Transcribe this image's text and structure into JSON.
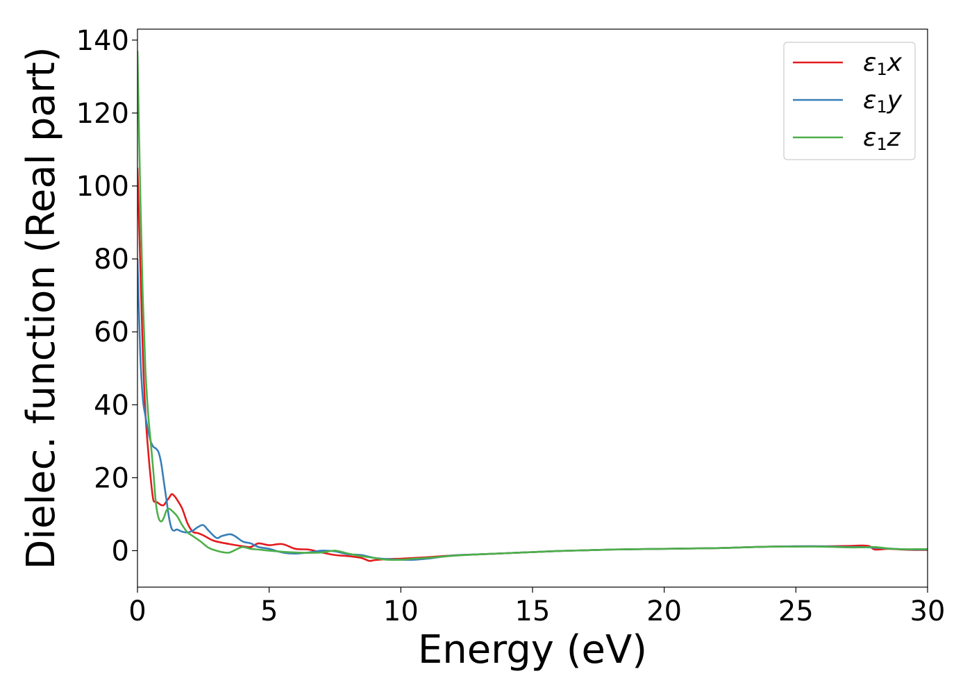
{
  "chart_data": {
    "type": "line",
    "title": "",
    "xlabel": "Energy (eV)",
    "ylabel": "Dielec. function (Real part)",
    "xlim": [
      0,
      30
    ],
    "ylim": [
      -10,
      143
    ],
    "xticks": [
      0,
      5,
      10,
      15,
      20,
      25,
      30
    ],
    "yticks": [
      0,
      20,
      40,
      60,
      80,
      100,
      120,
      140
    ],
    "grid": false,
    "legend_position": "top-right",
    "series": [
      {
        "name": "ε₁x",
        "legend_main": "ε",
        "legend_sub": "1",
        "legend_suffix": "x",
        "color": "#e41a1c",
        "x": [
          0,
          0.1,
          0.2,
          0.3,
          0.4,
          0.5,
          0.6,
          0.7,
          0.8,
          0.9,
          1.0,
          1.1,
          1.2,
          1.3,
          1.4,
          1.5,
          1.7,
          1.9,
          2.1,
          2.3,
          2.5,
          2.8,
          3.0,
          3.5,
          4.0,
          4.3,
          4.6,
          5.0,
          5.5,
          6.0,
          6.5,
          7.0,
          7.5,
          8.0,
          8.5,
          8.8,
          9.0,
          9.5,
          10.0,
          10.5,
          11.0,
          12.0,
          13.0,
          14.0,
          15.0,
          16.0,
          17.0,
          18.0,
          19.0,
          20.0,
          21.0,
          22.0,
          23.0,
          24.0,
          25.0,
          26.0,
          27.0,
          27.5,
          27.8,
          28.0,
          28.5,
          29.0,
          29.5,
          30.0
        ],
        "y": [
          105,
          80,
          55,
          38,
          28,
          20,
          14,
          13.5,
          13,
          12.5,
          12.5,
          13.5,
          14.5,
          15.5,
          15,
          14,
          11.5,
          7.5,
          5.2,
          4.8,
          4.2,
          3,
          2.5,
          1.8,
          1.2,
          1.0,
          2.0,
          1.5,
          1.8,
          0.5,
          0.3,
          -0.5,
          -1.2,
          -1.5,
          -2.0,
          -2.8,
          -2.6,
          -2.3,
          -2.2,
          -2.0,
          -1.8,
          -1.3,
          -1.0,
          -0.7,
          -0.4,
          -0.1,
          0.1,
          0.3,
          0.4,
          0.5,
          0.6,
          0.7,
          0.9,
          1.1,
          1.2,
          1.2,
          1.3,
          1.4,
          1.2,
          0.3,
          0.5,
          0.3,
          0.2,
          0.2
        ]
      },
      {
        "name": "ε₁y",
        "legend_main": "ε",
        "legend_sub": "1",
        "legend_suffix": "y",
        "color": "#377eb8",
        "x": [
          0,
          0.1,
          0.2,
          0.3,
          0.4,
          0.5,
          0.6,
          0.7,
          0.8,
          0.9,
          1.0,
          1.1,
          1.2,
          1.3,
          1.4,
          1.5,
          1.7,
          1.9,
          2.1,
          2.3,
          2.5,
          2.7,
          3.0,
          3.2,
          3.5,
          3.7,
          4.0,
          4.3,
          4.6,
          5.0,
          5.5,
          6.0,
          6.5,
          7.0,
          7.5,
          8.0,
          8.5,
          9.0,
          9.5,
          10.0,
          10.5,
          11.0,
          12.0,
          13.0,
          14.0,
          15.0,
          16.0,
          17.0,
          18.0,
          19.0,
          20.0,
          21.0,
          22.0,
          23.0,
          24.0,
          25.0,
          26.0,
          27.0,
          27.5,
          28.0,
          28.5,
          29.0,
          29.5,
          30.0
        ],
        "y": [
          80,
          55,
          42,
          37,
          33,
          30,
          28.5,
          28,
          27,
          24,
          19,
          14,
          9,
          6,
          5.5,
          5.8,
          5.2,
          5.0,
          5.5,
          6.5,
          7.0,
          5.5,
          3.5,
          4.0,
          4.5,
          4.0,
          2.5,
          2.0,
          1.0,
          0.5,
          -0.5,
          -0.8,
          -0.5,
          0,
          -0.2,
          -1.0,
          -1.2,
          -2.0,
          -2.3,
          -2.5,
          -2.5,
          -2.2,
          -1.3,
          -1.0,
          -0.7,
          -0.4,
          -0.1,
          0.1,
          0.3,
          0.4,
          0.5,
          0.6,
          0.7,
          0.9,
          1.1,
          1.2,
          1.2,
          1.0,
          1.0,
          0.8,
          0.6,
          0.4,
          0.3,
          0.3
        ]
      },
      {
        "name": "ε₁z",
        "legend_main": "ε",
        "legend_sub": "1",
        "legend_suffix": "z",
        "color": "#4daf4a",
        "x": [
          0,
          0.1,
          0.2,
          0.3,
          0.4,
          0.5,
          0.6,
          0.7,
          0.8,
          0.9,
          1.0,
          1.1,
          1.2,
          1.3,
          1.5,
          1.7,
          1.9,
          2.1,
          2.4,
          2.7,
          3.0,
          3.3,
          3.5,
          3.8,
          4.0,
          4.3,
          4.6,
          5.0,
          5.5,
          6.0,
          6.5,
          7.0,
          7.5,
          8.0,
          8.5,
          9.0,
          9.5,
          10.0,
          10.5,
          11.0,
          12.0,
          13.0,
          14.0,
          15.0,
          16.0,
          17.0,
          18.0,
          19.0,
          20.0,
          21.0,
          22.0,
          23.0,
          24.0,
          25.0,
          26.0,
          27.0,
          27.5,
          28.0,
          28.5,
          29.0,
          29.5,
          30.0
        ],
        "y": [
          137,
          100,
          70,
          50,
          38,
          30,
          22,
          13,
          9,
          8,
          9,
          11,
          11.5,
          11,
          9.5,
          7,
          5.0,
          4.0,
          2.5,
          0.8,
          0,
          -0.5,
          -0.5,
          0.5,
          1.0,
          0.5,
          0.3,
          0.0,
          -0.3,
          -0.5,
          -0.6,
          -0.5,
          0,
          -0.8,
          -1.5,
          -2.0,
          -2.5,
          -2.5,
          -2.2,
          -2.0,
          -1.4,
          -1.0,
          -0.7,
          -0.4,
          -0.1,
          0.1,
          0.3,
          0.4,
          0.5,
          0.6,
          0.7,
          0.9,
          1.1,
          1.1,
          1.1,
          0.9,
          0.9,
          1.0,
          0.6,
          0.4,
          0.4,
          0.4
        ]
      }
    ]
  }
}
